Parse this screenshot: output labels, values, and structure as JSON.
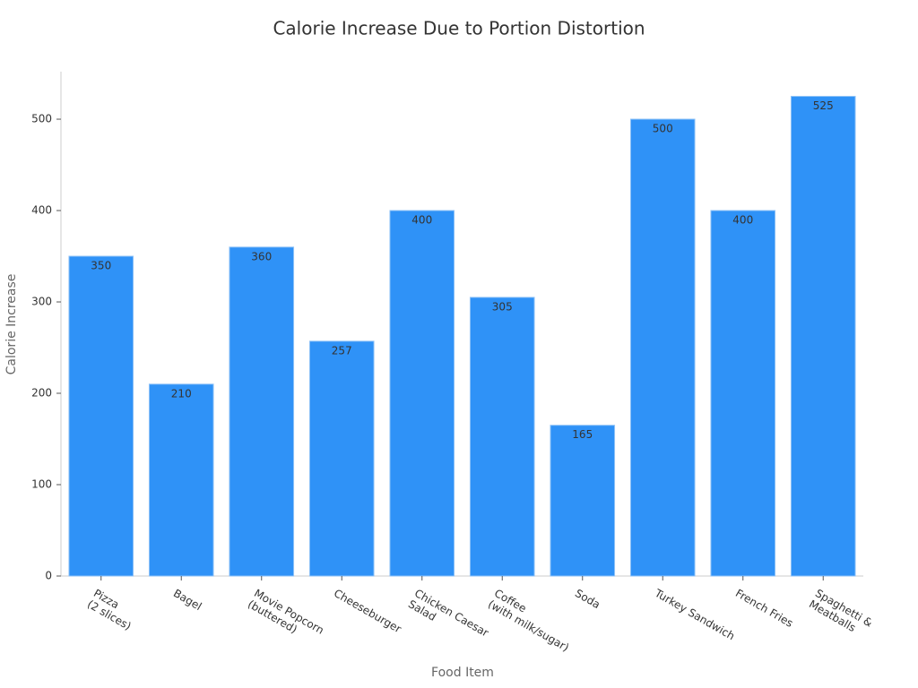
{
  "chart_data": {
    "type": "bar",
    "title": "Calorie Increase Due to Portion Distortion",
    "x_label": "Food Item",
    "y_label": "Calorie Increase",
    "categories": [
      "Pizza\n(2 slices)",
      "Bagel",
      "Movie Popcorn\n(buttered)",
      "Cheeseburger",
      "Chicken Caesar\nSalad",
      "Coffee\n(with milk/sugar)",
      "Soda",
      "Turkey Sandwich",
      "French Fries",
      "Spaghetti &\nMeatballs"
    ],
    "values": [
      350,
      210,
      360,
      257,
      400,
      305,
      165,
      500,
      400,
      525
    ],
    "color": "#2f92f7",
    "ylim": [
      0,
      552
    ],
    "yticks": [
      0,
      100,
      200,
      300,
      400,
      500
    ],
    "grid": false
  }
}
